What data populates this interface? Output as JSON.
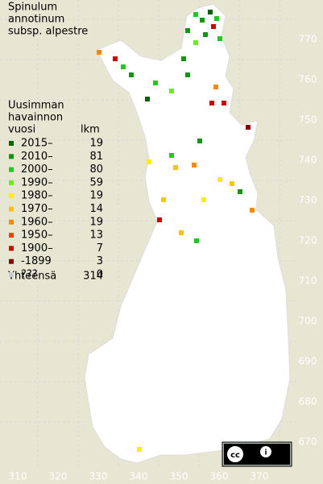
{
  "title": [
    "Spinulum",
    "annotinum",
    "subsp. alpestre"
  ],
  "legend": {
    "heading": [
      "Uusimman",
      "havainnon"
    ],
    "year_header": "vuosi",
    "count_header": "lkm",
    "rows": [
      {
        "label": "2015–",
        "count": 19,
        "color": "#006400"
      },
      {
        "label": "2010–",
        "count": 81,
        "color": "#129612"
      },
      {
        "label": "2000–",
        "count": 80,
        "color": "#22c822"
      },
      {
        "label": "1990–",
        "count": 59,
        "color": "#66ee22"
      },
      {
        "label": "1980–",
        "count": 19,
        "color": "#ffee00"
      },
      {
        "label": "1970–",
        "count": 14,
        "color": "#ffc400"
      },
      {
        "label": "1960–",
        "count": 19,
        "color": "#ff8800"
      },
      {
        "label": "1950–",
        "count": 13,
        "color": "#ee4400"
      },
      {
        "label": "1900–",
        "count": 7,
        "color": "#cc0000"
      },
      {
        "label": "-1899",
        "count": 3,
        "color": "#880000"
      },
      {
        "label": "???",
        "count": 0,
        "color": "#cccccc"
      }
    ],
    "total_label": "Yhteensä",
    "total": 314
  },
  "grid": {
    "x_labels": [
      310,
      320,
      330,
      340,
      350,
      360,
      370
    ],
    "y_labels": [
      670,
      680,
      690,
      700,
      710,
      720,
      730,
      740,
      750,
      760,
      770
    ]
  }
}
